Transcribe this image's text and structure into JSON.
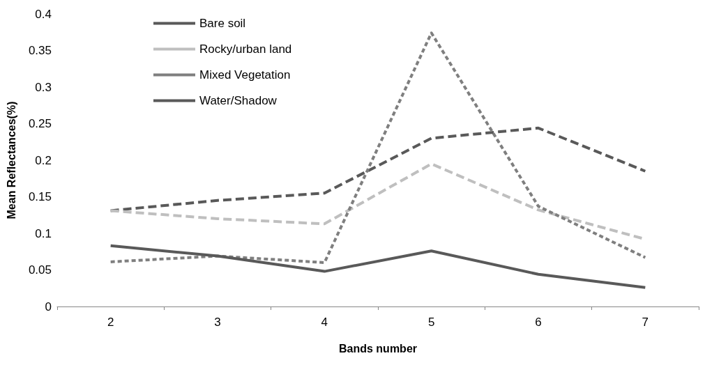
{
  "chart_data": {
    "type": "line",
    "xlabel": "Bands number",
    "ylabel": "Mean Reflectances(%)",
    "categories": [
      "2",
      "3",
      "4",
      "5",
      "6",
      "7"
    ],
    "series": [
      {
        "name": "Bare soil",
        "color": "#595959",
        "line_style": "dashed",
        "values": [
          0.131,
          0.145,
          0.155,
          0.23,
          0.244,
          0.185
        ]
      },
      {
        "name": "Rocky/urban land",
        "color": "#bfbfbf",
        "line_style": "dashed",
        "values": [
          0.131,
          0.12,
          0.113,
          0.195,
          0.132,
          0.092
        ]
      },
      {
        "name": "Mixed Vegetation",
        "color": "#7f7f7f",
        "line_style": "dotted",
        "values": [
          0.061,
          0.069,
          0.06,
          0.374,
          0.137,
          0.067
        ]
      },
      {
        "name": "Water/Shadow",
        "color": "#595959",
        "line_style": "solid",
        "values": [
          0.083,
          0.069,
          0.048,
          0.076,
          0.044,
          0.026
        ]
      }
    ],
    "ylim": [
      0,
      0.4
    ],
    "yticks": [
      0,
      0.05,
      0.1,
      0.15,
      0.2,
      0.25,
      0.3,
      0.35,
      0.4
    ],
    "grid": false,
    "legend": "top left",
    "marker": "none"
  }
}
